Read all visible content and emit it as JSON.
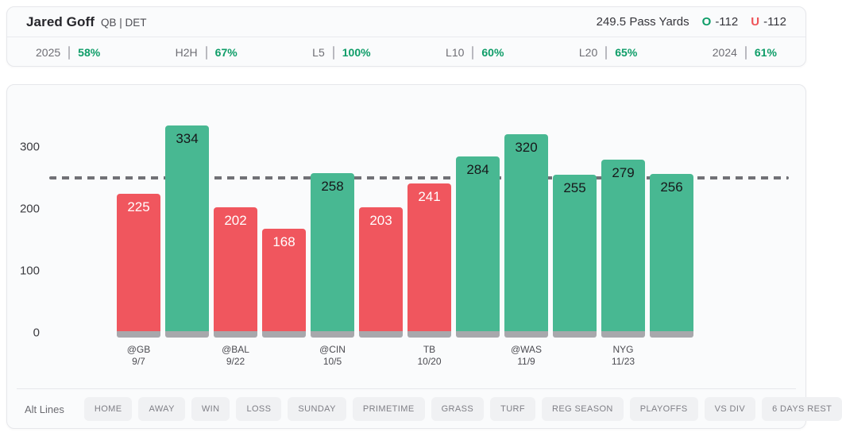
{
  "header": {
    "player_name": "Jared Goff",
    "position_team": "QB | DET",
    "line_label": "249.5 Pass Yards",
    "over": {
      "letter": "O",
      "odds": "-112"
    },
    "under": {
      "letter": "U",
      "odds": "-112"
    }
  },
  "stats": [
    {
      "label": "2025",
      "value": "58%"
    },
    {
      "label": "H2H",
      "value": "67%"
    },
    {
      "label": "L5",
      "value": "100%"
    },
    {
      "label": "L10",
      "value": "60%"
    },
    {
      "label": "L20",
      "value": "65%"
    },
    {
      "label": "2024",
      "value": "61%"
    }
  ],
  "chart_data": {
    "type": "bar",
    "title": "",
    "xlabel": "",
    "ylabel": "",
    "yticks": [
      0,
      100,
      200,
      300
    ],
    "ylim": [
      0,
      360
    ],
    "threshold_line": 249.5,
    "grid": false,
    "games": [
      {
        "value": 225,
        "result": "under",
        "opponent": "@GB",
        "date": "9/7"
      },
      {
        "value": 334,
        "result": "over"
      },
      {
        "value": 202,
        "result": "under",
        "opponent": "@BAL",
        "date": "9/22"
      },
      {
        "value": 168,
        "result": "under"
      },
      {
        "value": 258,
        "result": "over",
        "opponent": "@CIN",
        "date": "10/5"
      },
      {
        "value": 203,
        "result": "under"
      },
      {
        "value": 241,
        "result": "under",
        "opponent": "TB",
        "date": "10/20"
      },
      {
        "value": 284,
        "result": "over"
      },
      {
        "value": 320,
        "result": "over",
        "opponent": "@WAS",
        "date": "11/9"
      },
      {
        "value": 255,
        "result": "over"
      },
      {
        "value": 279,
        "result": "over",
        "opponent": "NYG",
        "date": "11/23"
      },
      {
        "value": 256,
        "result": "over"
      }
    ],
    "colors": {
      "over_bar": "#48b892",
      "under_bar": "#f0565e",
      "bar_base": "#a8a8ac",
      "threshold_line": "#717176",
      "over_text": "#0e9d68",
      "under_text": "#ef5358"
    }
  },
  "filters": {
    "alt_lines_label": "Alt Lines",
    "stepper": {
      "up_icon": "chevron-up",
      "down_icon": "chevron-down"
    },
    "buttons": [
      "HOME",
      "AWAY",
      "WIN",
      "LOSS",
      "SUNDAY",
      "PRIMETIME",
      "GRASS",
      "TURF",
      "REG SEASON",
      "PLAYOFFS",
      "VS DIV",
      "6 DAYS REST"
    ]
  }
}
